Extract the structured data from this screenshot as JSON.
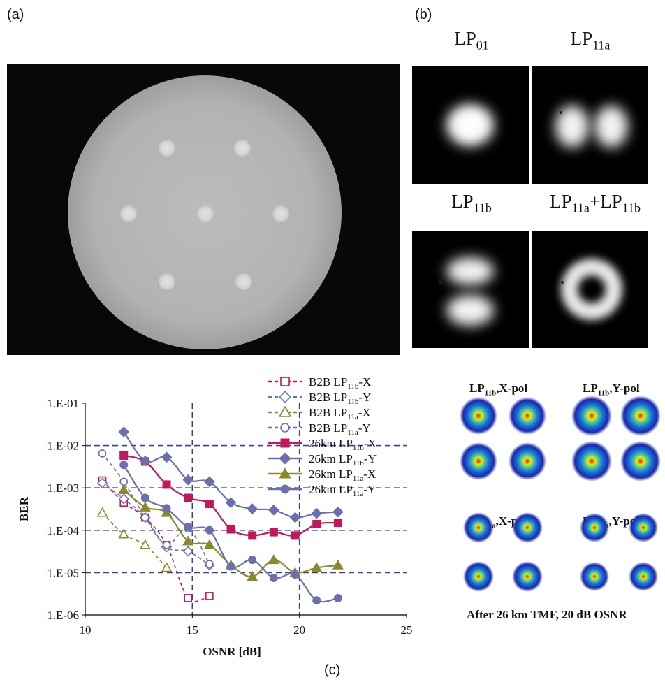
{
  "panel_labels": {
    "a": "(a)",
    "b": "(b)",
    "c": "(c)"
  },
  "mode_titles": {
    "lp01": {
      "base": "LP",
      "sub": "01"
    },
    "lp11a": {
      "base": "LP",
      "sub": "11a"
    },
    "lp11b": {
      "base": "LP",
      "sub": "11b"
    },
    "lp11ab": {
      "base1": "LP",
      "sub1": "11a",
      "plus": "+",
      "base2": "LP",
      "sub2": "11b"
    }
  },
  "constellations": {
    "t1": {
      "base": "LP",
      "sub": "11b",
      "rest": ",X-pol"
    },
    "t2": {
      "base": "LP",
      "sub": "11b",
      "rest": ",Y-pol"
    },
    "t3": {
      "base": "LP",
      "sub": "11a",
      "rest": ",X-pol"
    },
    "t4": {
      "base": "LP",
      "sub": "11a",
      "rest": ",Y-pol"
    },
    "caption": "After 26 km TMF, 20 dB OSNR"
  },
  "chart_data": {
    "type": "line",
    "xlabel": "OSNR [dB]",
    "ylabel": "BER",
    "xlim": [
      10,
      25
    ],
    "x_ticks": [
      "10",
      "15",
      "20",
      "25"
    ],
    "y_ticks": [
      "1.E-01",
      "1.E-02",
      "1.E-03",
      "1.E-04",
      "1.E-05",
      "1.E-06"
    ],
    "y_scale": "log",
    "ylim": [
      1e-06,
      0.1
    ],
    "vertical_lines": [
      15,
      20
    ],
    "horizontal_lines": [
      0.01,
      0.001,
      0.0001,
      1e-05
    ],
    "legend_placement": "top-right",
    "series": [
      {
        "name_main": "B2B LP",
        "name_sub": "11b",
        "name_end": "-X",
        "color": "#c2185b",
        "marker": "square-open",
        "dash": true,
        "x": [
          10.8,
          11.8,
          12.8,
          13.8,
          14.8,
          15.8
        ],
        "y": [
          0.0015,
          0.00045,
          0.0002,
          4.5e-05,
          2.5e-06,
          2.8e-06
        ]
      },
      {
        "name_main": "B2B LP",
        "name_sub": "11b",
        "name_end": "-Y",
        "color": "#6a6fb0",
        "marker": "diamond-open",
        "dash": true,
        "x": [
          10.8,
          11.8,
          12.8,
          13.8,
          14.8,
          15.8
        ],
        "y": [
          0.0013,
          0.00055,
          0.0002,
          4e-05,
          3.2e-05,
          1.5e-05
        ]
      },
      {
        "name_main": "B2B LP",
        "name_sub": "11a",
        "name_end": "-X",
        "color": "#8a8a2a",
        "marker": "triangle-open",
        "dash": true,
        "x": [
          10.8,
          11.8,
          12.8,
          13.8
        ],
        "y": [
          0.00026,
          8e-05,
          4.5e-05,
          1.3e-05
        ]
      },
      {
        "name_main": "B2B LP",
        "name_sub": "11a",
        "name_end": "-Y",
        "color": "#6a6fb0",
        "marker": "circle-open",
        "dash": true,
        "x": [
          10.8,
          11.8,
          12.8,
          13.8,
          14.8,
          15.8
        ],
        "y": [
          0.0065,
          0.0014,
          0.0002,
          4.5e-05,
          0.00011,
          1.6e-05
        ]
      },
      {
        "name_main": "26km LP",
        "name_sub": "11b",
        "name_end": "-X",
        "color": "#c2185b",
        "marker": "square",
        "dash": false,
        "x": [
          11.8,
          12.8,
          13.8,
          14.8,
          15.8,
          16.8,
          17.8,
          18.8,
          19.8,
          20.8,
          21.8
        ],
        "y": [
          0.0058,
          0.0042,
          0.0012,
          0.00058,
          0.00042,
          0.000105,
          7.5e-05,
          9e-05,
          7.5e-05,
          0.00014,
          0.00015
        ]
      },
      {
        "name_main": "26km LP",
        "name_sub": "11b",
        "name_end": "-Y",
        "color": "#6a6fb0",
        "marker": "diamond",
        "dash": false,
        "x": [
          11.8,
          12.8,
          13.8,
          14.8,
          15.8,
          16.8,
          17.8,
          18.8,
          19.8,
          20.8,
          21.8
        ],
        "y": [
          0.021,
          0.0043,
          0.0053,
          0.00155,
          0.0014,
          0.00045,
          0.00032,
          0.0003,
          0.0002,
          0.00025,
          0.00027
        ]
      },
      {
        "name_main": "26km LP",
        "name_sub": "11a",
        "name_end": "-X",
        "color": "#8a8a2a",
        "marker": "triangle",
        "dash": false,
        "x": [
          11.8,
          12.8,
          13.8,
          14.8,
          15.8,
          16.8,
          17.8,
          18.8,
          19.8,
          20.8,
          21.8
        ],
        "y": [
          0.0009,
          0.00035,
          0.00026,
          5.5e-05,
          4.5e-05,
          1.5e-05,
          8e-06,
          2e-05,
          1e-05,
          1.3e-05,
          1.5e-05
        ]
      },
      {
        "name_main": "26km LP",
        "name_sub": "11a",
        "name_end": "-Y",
        "color": "#6a6fb0",
        "marker": "circle",
        "dash": false,
        "x": [
          11.8,
          12.8,
          13.8,
          14.8,
          15.8,
          16.8,
          17.8,
          18.8,
          19.8,
          20.8,
          21.8
        ],
        "y": [
          0.0035,
          0.00058,
          0.00033,
          0.00012,
          0.0001,
          1.4e-05,
          2e-05,
          7.5e-06,
          9e-06,
          2.2e-06,
          2.5e-06
        ]
      }
    ]
  }
}
